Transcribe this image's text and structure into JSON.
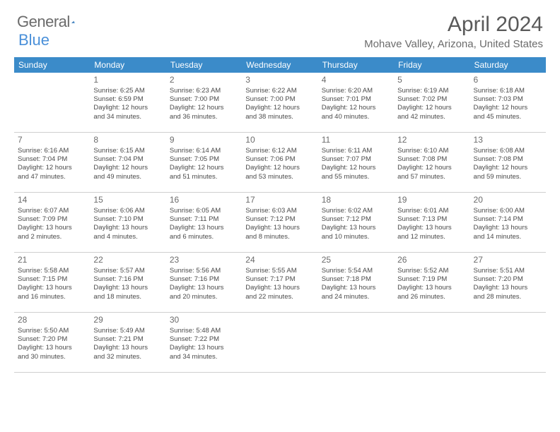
{
  "brand": {
    "name_a": "General",
    "name_b": "Blue"
  },
  "title": "April 2024",
  "location": "Mohave Valley, Arizona, United States",
  "colors": {
    "header_bar": "#3b8bc9",
    "header_text": "#ffffff",
    "body_text": "#4a4a4a",
    "daynum": "#6b6b6b",
    "rule": "#d0d0d0",
    "logo_blue": "#4a90d9",
    "background": "#ffffff"
  },
  "fonts": {
    "title_pt": 30,
    "location_pt": 15,
    "weekday_pt": 12,
    "daynum_pt": 12,
    "cell_pt": 9.5
  },
  "weekdays": [
    "Sunday",
    "Monday",
    "Tuesday",
    "Wednesday",
    "Thursday",
    "Friday",
    "Saturday"
  ],
  "weeks": [
    [
      {
        "n": "",
        "sr": "",
        "ss": "",
        "dl1": "",
        "dl2": ""
      },
      {
        "n": "1",
        "sr": "Sunrise: 6:25 AM",
        "ss": "Sunset: 6:59 PM",
        "dl1": "Daylight: 12 hours",
        "dl2": "and 34 minutes."
      },
      {
        "n": "2",
        "sr": "Sunrise: 6:23 AM",
        "ss": "Sunset: 7:00 PM",
        "dl1": "Daylight: 12 hours",
        "dl2": "and 36 minutes."
      },
      {
        "n": "3",
        "sr": "Sunrise: 6:22 AM",
        "ss": "Sunset: 7:00 PM",
        "dl1": "Daylight: 12 hours",
        "dl2": "and 38 minutes."
      },
      {
        "n": "4",
        "sr": "Sunrise: 6:20 AM",
        "ss": "Sunset: 7:01 PM",
        "dl1": "Daylight: 12 hours",
        "dl2": "and 40 minutes."
      },
      {
        "n": "5",
        "sr": "Sunrise: 6:19 AM",
        "ss": "Sunset: 7:02 PM",
        "dl1": "Daylight: 12 hours",
        "dl2": "and 42 minutes."
      },
      {
        "n": "6",
        "sr": "Sunrise: 6:18 AM",
        "ss": "Sunset: 7:03 PM",
        "dl1": "Daylight: 12 hours",
        "dl2": "and 45 minutes."
      }
    ],
    [
      {
        "n": "7",
        "sr": "Sunrise: 6:16 AM",
        "ss": "Sunset: 7:04 PM",
        "dl1": "Daylight: 12 hours",
        "dl2": "and 47 minutes."
      },
      {
        "n": "8",
        "sr": "Sunrise: 6:15 AM",
        "ss": "Sunset: 7:04 PM",
        "dl1": "Daylight: 12 hours",
        "dl2": "and 49 minutes."
      },
      {
        "n": "9",
        "sr": "Sunrise: 6:14 AM",
        "ss": "Sunset: 7:05 PM",
        "dl1": "Daylight: 12 hours",
        "dl2": "and 51 minutes."
      },
      {
        "n": "10",
        "sr": "Sunrise: 6:12 AM",
        "ss": "Sunset: 7:06 PM",
        "dl1": "Daylight: 12 hours",
        "dl2": "and 53 minutes."
      },
      {
        "n": "11",
        "sr": "Sunrise: 6:11 AM",
        "ss": "Sunset: 7:07 PM",
        "dl1": "Daylight: 12 hours",
        "dl2": "and 55 minutes."
      },
      {
        "n": "12",
        "sr": "Sunrise: 6:10 AM",
        "ss": "Sunset: 7:08 PM",
        "dl1": "Daylight: 12 hours",
        "dl2": "and 57 minutes."
      },
      {
        "n": "13",
        "sr": "Sunrise: 6:08 AM",
        "ss": "Sunset: 7:08 PM",
        "dl1": "Daylight: 12 hours",
        "dl2": "and 59 minutes."
      }
    ],
    [
      {
        "n": "14",
        "sr": "Sunrise: 6:07 AM",
        "ss": "Sunset: 7:09 PM",
        "dl1": "Daylight: 13 hours",
        "dl2": "and 2 minutes."
      },
      {
        "n": "15",
        "sr": "Sunrise: 6:06 AM",
        "ss": "Sunset: 7:10 PM",
        "dl1": "Daylight: 13 hours",
        "dl2": "and 4 minutes."
      },
      {
        "n": "16",
        "sr": "Sunrise: 6:05 AM",
        "ss": "Sunset: 7:11 PM",
        "dl1": "Daylight: 13 hours",
        "dl2": "and 6 minutes."
      },
      {
        "n": "17",
        "sr": "Sunrise: 6:03 AM",
        "ss": "Sunset: 7:12 PM",
        "dl1": "Daylight: 13 hours",
        "dl2": "and 8 minutes."
      },
      {
        "n": "18",
        "sr": "Sunrise: 6:02 AM",
        "ss": "Sunset: 7:12 PM",
        "dl1": "Daylight: 13 hours",
        "dl2": "and 10 minutes."
      },
      {
        "n": "19",
        "sr": "Sunrise: 6:01 AM",
        "ss": "Sunset: 7:13 PM",
        "dl1": "Daylight: 13 hours",
        "dl2": "and 12 minutes."
      },
      {
        "n": "20",
        "sr": "Sunrise: 6:00 AM",
        "ss": "Sunset: 7:14 PM",
        "dl1": "Daylight: 13 hours",
        "dl2": "and 14 minutes."
      }
    ],
    [
      {
        "n": "21",
        "sr": "Sunrise: 5:58 AM",
        "ss": "Sunset: 7:15 PM",
        "dl1": "Daylight: 13 hours",
        "dl2": "and 16 minutes."
      },
      {
        "n": "22",
        "sr": "Sunrise: 5:57 AM",
        "ss": "Sunset: 7:16 PM",
        "dl1": "Daylight: 13 hours",
        "dl2": "and 18 minutes."
      },
      {
        "n": "23",
        "sr": "Sunrise: 5:56 AM",
        "ss": "Sunset: 7:16 PM",
        "dl1": "Daylight: 13 hours",
        "dl2": "and 20 minutes."
      },
      {
        "n": "24",
        "sr": "Sunrise: 5:55 AM",
        "ss": "Sunset: 7:17 PM",
        "dl1": "Daylight: 13 hours",
        "dl2": "and 22 minutes."
      },
      {
        "n": "25",
        "sr": "Sunrise: 5:54 AM",
        "ss": "Sunset: 7:18 PM",
        "dl1": "Daylight: 13 hours",
        "dl2": "and 24 minutes."
      },
      {
        "n": "26",
        "sr": "Sunrise: 5:52 AM",
        "ss": "Sunset: 7:19 PM",
        "dl1": "Daylight: 13 hours",
        "dl2": "and 26 minutes."
      },
      {
        "n": "27",
        "sr": "Sunrise: 5:51 AM",
        "ss": "Sunset: 7:20 PM",
        "dl1": "Daylight: 13 hours",
        "dl2": "and 28 minutes."
      }
    ],
    [
      {
        "n": "28",
        "sr": "Sunrise: 5:50 AM",
        "ss": "Sunset: 7:20 PM",
        "dl1": "Daylight: 13 hours",
        "dl2": "and 30 minutes."
      },
      {
        "n": "29",
        "sr": "Sunrise: 5:49 AM",
        "ss": "Sunset: 7:21 PM",
        "dl1": "Daylight: 13 hours",
        "dl2": "and 32 minutes."
      },
      {
        "n": "30",
        "sr": "Sunrise: 5:48 AM",
        "ss": "Sunset: 7:22 PM",
        "dl1": "Daylight: 13 hours",
        "dl2": "and 34 minutes."
      },
      {
        "n": "",
        "sr": "",
        "ss": "",
        "dl1": "",
        "dl2": ""
      },
      {
        "n": "",
        "sr": "",
        "ss": "",
        "dl1": "",
        "dl2": ""
      },
      {
        "n": "",
        "sr": "",
        "ss": "",
        "dl1": "",
        "dl2": ""
      },
      {
        "n": "",
        "sr": "",
        "ss": "",
        "dl1": "",
        "dl2": ""
      }
    ]
  ]
}
